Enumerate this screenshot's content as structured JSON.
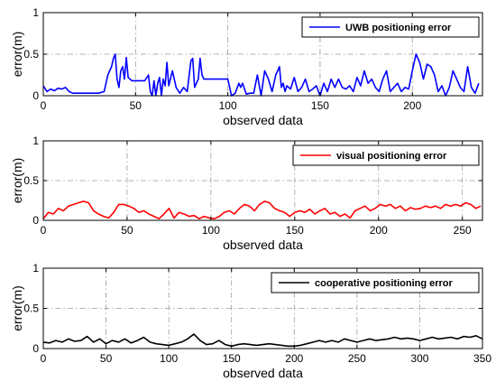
{
  "chart_data": [
    {
      "type": "line",
      "xlabel": "observed data",
      "ylabel": "error(m)",
      "xlim": [
        0,
        238
      ],
      "ylim": [
        0,
        1
      ],
      "xticks": [
        0,
        50,
        100,
        150,
        200
      ],
      "yticks": [
        0,
        0.5,
        1
      ],
      "xtick_labels": [
        "0",
        "50",
        "100",
        "150",
        "200"
      ],
      "ytick_labels": [
        "0",
        "0.5",
        "1"
      ],
      "grid": true,
      "legend_position": "top-right",
      "color": "#0000ff",
      "series": [
        {
          "name": "UWB positioning error",
          "x": [
            0,
            2,
            4,
            6,
            8,
            10,
            12,
            14,
            16,
            20,
            25,
            30,
            33,
            35,
            37,
            38,
            39,
            40,
            41,
            42,
            43,
            44,
            45,
            46,
            48,
            50,
            52,
            55,
            57,
            58,
            59,
            60,
            61,
            62,
            63,
            64,
            65,
            66,
            67,
            68,
            70,
            72,
            74,
            76,
            78,
            80,
            81,
            82,
            83,
            84,
            85,
            86,
            87,
            88,
            90,
            92,
            95,
            98,
            100,
            102,
            104,
            106,
            107,
            108,
            110,
            112,
            114,
            116,
            118,
            120,
            122,
            124,
            126,
            128,
            129,
            130,
            131,
            132,
            134,
            136,
            138,
            140,
            142,
            144,
            146,
            148,
            150,
            152,
            154,
            156,
            158,
            160,
            162,
            164,
            166,
            168,
            170,
            172,
            174,
            176,
            178,
            180,
            182,
            184,
            186,
            188,
            190,
            192,
            194,
            196,
            198,
            200,
            202,
            204,
            206,
            208,
            210,
            212,
            214,
            216,
            218,
            220,
            222,
            224,
            226,
            228,
            230,
            232,
            234,
            236
          ],
          "y": [
            0.12,
            0.05,
            0.08,
            0.06,
            0.09,
            0.08,
            0.1,
            0.05,
            0.03,
            0.03,
            0.03,
            0.03,
            0.05,
            0.25,
            0.35,
            0.45,
            0.5,
            0.2,
            0.1,
            0.3,
            0.35,
            0.2,
            0.46,
            0.22,
            0.18,
            0.18,
            0.18,
            0.18,
            0.25,
            0.05,
            0.0,
            0.18,
            0.0,
            0.15,
            0.22,
            0.0,
            0.2,
            0.12,
            0.4,
            0.12,
            0.3,
            0.1,
            0.03,
            0.1,
            0.05,
            0.42,
            0.45,
            0.1,
            0.15,
            0.2,
            0.45,
            0.25,
            0.2,
            0.2,
            0.2,
            0.2,
            0.2,
            0.2,
            0.2,
            0.0,
            0.03,
            0.15,
            0.1,
            0.15,
            0.02,
            0.03,
            0.03,
            0.25,
            0.0,
            0.3,
            0.2,
            0.05,
            0.25,
            0.35,
            0.1,
            0.15,
            0.05,
            0.12,
            0.08,
            0.22,
            0.05,
            0.1,
            0.2,
            0.05,
            0.08,
            0.12,
            0.0,
            0.15,
            0.05,
            0.2,
            0.1,
            0.2,
            0.1,
            0.08,
            0.12,
            0.05,
            0.22,
            0.12,
            0.3,
            0.15,
            0.2,
            0.1,
            0.05,
            0.2,
            0.3,
            0.05,
            0.1,
            0.15,
            0.05,
            0.1,
            0.08,
            0.3,
            0.5,
            0.4,
            0.2,
            0.38,
            0.35,
            0.25,
            0.05,
            0.12,
            0.0,
            0.1,
            0.3,
            0.2,
            0.1,
            0.05,
            0.35,
            0.1,
            0.03,
            0.15
          ]
        }
      ]
    },
    {
      "type": "line",
      "xlabel": "observed data",
      "ylabel": "error(m)",
      "xlim": [
        0,
        262
      ],
      "ylim": [
        0,
        1
      ],
      "xticks": [
        0,
        50,
        100,
        150,
        200,
        250
      ],
      "yticks": [
        0,
        0.5,
        1
      ],
      "xtick_labels": [
        "0",
        "50",
        "100",
        "150",
        "200",
        "250"
      ],
      "ytick_labels": [
        "0",
        "0.5",
        "1"
      ],
      "grid": true,
      "legend_position": "top-right",
      "color": "#ff0000",
      "series": [
        {
          "name": "visual positioning error",
          "x": [
            0,
            3,
            6,
            9,
            12,
            15,
            18,
            21,
            24,
            27,
            30,
            33,
            36,
            39,
            42,
            45,
            48,
            51,
            54,
            57,
            60,
            63,
            66,
            69,
            72,
            75,
            78,
            81,
            84,
            87,
            90,
            93,
            96,
            99,
            102,
            105,
            108,
            111,
            114,
            117,
            120,
            123,
            126,
            129,
            132,
            135,
            138,
            141,
            144,
            147,
            150,
            153,
            156,
            159,
            162,
            165,
            168,
            171,
            174,
            177,
            180,
            183,
            186,
            189,
            192,
            195,
            198,
            201,
            204,
            207,
            210,
            213,
            216,
            219,
            222,
            225,
            228,
            231,
            234,
            237,
            240,
            243,
            246,
            249,
            252,
            255,
            258,
            261
          ],
          "y": [
            0.02,
            0.1,
            0.08,
            0.15,
            0.12,
            0.18,
            0.2,
            0.22,
            0.24,
            0.22,
            0.12,
            0.08,
            0.05,
            0.03,
            0.1,
            0.2,
            0.2,
            0.18,
            0.15,
            0.1,
            0.12,
            0.08,
            0.05,
            0.02,
            0.08,
            0.15,
            0.03,
            0.1,
            0.08,
            0.05,
            0.06,
            0.02,
            0.05,
            0.03,
            0.02,
            0.05,
            0.1,
            0.12,
            0.08,
            0.15,
            0.2,
            0.18,
            0.12,
            0.2,
            0.24,
            0.22,
            0.15,
            0.12,
            0.1,
            0.05,
            0.1,
            0.12,
            0.1,
            0.14,
            0.08,
            0.12,
            0.15,
            0.08,
            0.1,
            0.05,
            0.08,
            0.03,
            0.12,
            0.15,
            0.18,
            0.12,
            0.15,
            0.2,
            0.18,
            0.2,
            0.15,
            0.18,
            0.12,
            0.16,
            0.14,
            0.15,
            0.18,
            0.16,
            0.18,
            0.15,
            0.2,
            0.18,
            0.2,
            0.18,
            0.22,
            0.2,
            0.15,
            0.18
          ]
        }
      ]
    },
    {
      "type": "line",
      "xlabel": "observed data",
      "ylabel": "error(m)",
      "xlim": [
        0,
        350
      ],
      "ylim": [
        0,
        1
      ],
      "xticks": [
        0,
        50,
        100,
        150,
        200,
        250,
        300,
        350
      ],
      "yticks": [
        0,
        0.5,
        1
      ],
      "xtick_labels": [
        "0",
        "50",
        "100",
        "150",
        "200",
        "250",
        "300",
        "350"
      ],
      "ytick_labels": [
        "0",
        "0.5",
        "1"
      ],
      "grid": true,
      "legend_position": "top-right",
      "color": "#000000",
      "series": [
        {
          "name": "cooperative positioning error",
          "x": [
            0,
            5,
            10,
            15,
            20,
            25,
            30,
            35,
            40,
            45,
            50,
            55,
            60,
            65,
            70,
            75,
            80,
            85,
            90,
            95,
            100,
            105,
            110,
            115,
            120,
            125,
            130,
            135,
            140,
            145,
            150,
            155,
            160,
            165,
            170,
            175,
            180,
            185,
            190,
            195,
            200,
            205,
            210,
            215,
            220,
            225,
            230,
            235,
            240,
            245,
            250,
            255,
            260,
            265,
            270,
            275,
            280,
            285,
            290,
            295,
            300,
            305,
            310,
            315,
            320,
            325,
            330,
            335,
            340,
            345,
            350
          ],
          "y": [
            0.08,
            0.07,
            0.1,
            0.08,
            0.12,
            0.09,
            0.1,
            0.15,
            0.08,
            0.12,
            0.06,
            0.1,
            0.08,
            0.12,
            0.07,
            0.1,
            0.14,
            0.08,
            0.06,
            0.05,
            0.04,
            0.06,
            0.08,
            0.12,
            0.18,
            0.1,
            0.05,
            0.06,
            0.1,
            0.05,
            0.03,
            0.05,
            0.06,
            0.05,
            0.04,
            0.05,
            0.06,
            0.05,
            0.04,
            0.03,
            0.03,
            0.04,
            0.06,
            0.08,
            0.1,
            0.08,
            0.1,
            0.08,
            0.12,
            0.1,
            0.08,
            0.1,
            0.12,
            0.1,
            0.11,
            0.12,
            0.14,
            0.12,
            0.13,
            0.12,
            0.1,
            0.12,
            0.14,
            0.12,
            0.13,
            0.14,
            0.12,
            0.15,
            0.14,
            0.16,
            0.12
          ]
        }
      ]
    }
  ]
}
